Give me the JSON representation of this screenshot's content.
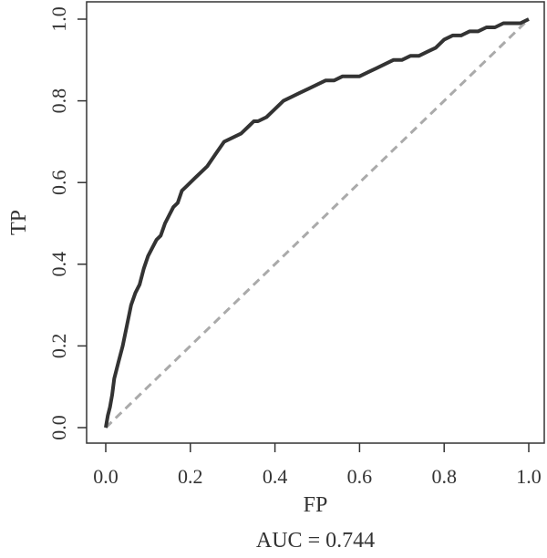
{
  "chart_data": {
    "type": "line",
    "title": "",
    "xlabel": "FP",
    "ylabel": "TP",
    "xlim": [
      0,
      1
    ],
    "ylim": [
      0,
      1
    ],
    "grid": false,
    "x_ticks": [
      "0.0",
      "0.2",
      "0.4",
      "0.6",
      "0.8",
      "1.0"
    ],
    "y_ticks": [
      "0.0",
      "0.2",
      "0.4",
      "0.6",
      "0.8",
      "1.0"
    ],
    "annotation": "AUC = 0.744",
    "colors": {
      "roc": "#333333",
      "diagonal": "#aaaaaa",
      "axis": "#333333"
    },
    "series": [
      {
        "x": [
          0.0,
          0.005,
          0.01,
          0.015,
          0.02,
          0.03,
          0.04,
          0.05,
          0.06,
          0.07,
          0.08,
          0.09,
          0.1,
          0.11,
          0.12,
          0.13,
          0.14,
          0.15,
          0.16,
          0.17,
          0.18,
          0.19,
          0.2,
          0.21,
          0.22,
          0.23,
          0.24,
          0.26,
          0.28,
          0.3,
          0.32,
          0.34,
          0.35,
          0.36,
          0.38,
          0.4,
          0.42,
          0.44,
          0.46,
          0.48,
          0.5,
          0.52,
          0.54,
          0.56,
          0.58,
          0.6,
          0.62,
          0.64,
          0.66,
          0.68,
          0.7,
          0.72,
          0.74,
          0.76,
          0.78,
          0.8,
          0.82,
          0.84,
          0.86,
          0.88,
          0.9,
          0.92,
          0.94,
          0.96,
          0.98,
          1.0
        ],
        "y": [
          0.0,
          0.03,
          0.05,
          0.08,
          0.12,
          0.16,
          0.2,
          0.25,
          0.3,
          0.33,
          0.35,
          0.39,
          0.42,
          0.44,
          0.46,
          0.47,
          0.5,
          0.52,
          0.54,
          0.55,
          0.58,
          0.59,
          0.6,
          0.61,
          0.62,
          0.63,
          0.64,
          0.67,
          0.7,
          0.71,
          0.72,
          0.74,
          0.75,
          0.75,
          0.76,
          0.78,
          0.8,
          0.81,
          0.82,
          0.83,
          0.84,
          0.85,
          0.85,
          0.86,
          0.86,
          0.86,
          0.87,
          0.88,
          0.89,
          0.9,
          0.9,
          0.91,
          0.91,
          0.92,
          0.93,
          0.95,
          0.96,
          0.96,
          0.97,
          0.97,
          0.98,
          0.98,
          0.99,
          0.99,
          0.99,
          1.0
        ]
      },
      {
        "x": [
          0.0,
          1.0
        ],
        "y": [
          0.0,
          1.0
        ]
      }
    ]
  }
}
